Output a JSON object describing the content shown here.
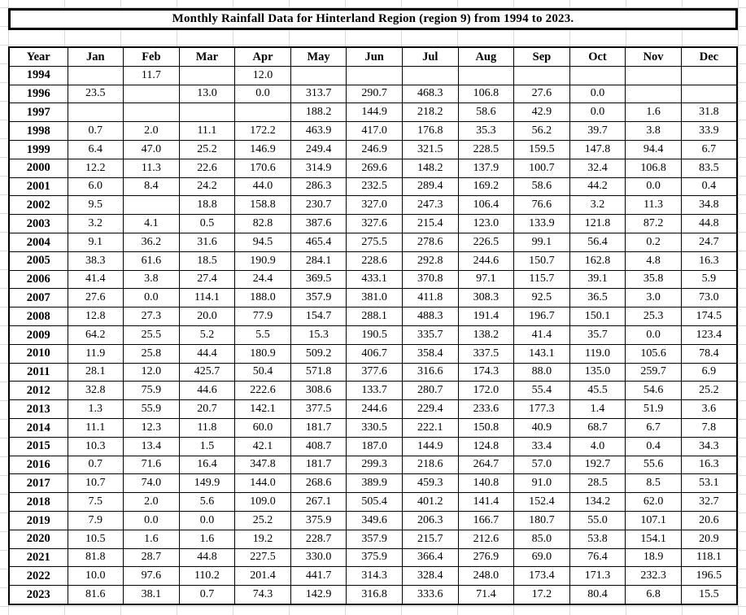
{
  "title": "Monthly Rainfall Data for Hinterland Region (region 9) from 1994 to 2023.",
  "colors": {
    "background": "#ffffff",
    "table_border": "#000000",
    "text": "#000000",
    "gridline": "#d9d9d9"
  },
  "table": {
    "columns": [
      "Year",
      "Jan",
      "Feb",
      "Mar",
      "Apr",
      "May",
      "Jun",
      "Jul",
      "Aug",
      "Sep",
      "Oct",
      "Nov",
      "Dec"
    ],
    "rows": [
      [
        "1994",
        "",
        "11.7",
        "",
        "12.0",
        "",
        "",
        "",
        "",
        "",
        "",
        "",
        ""
      ],
      [
        "1996",
        "23.5",
        "",
        "13.0",
        "0.0",
        "313.7",
        "290.7",
        "468.3",
        "106.8",
        "27.6",
        "0.0",
        "",
        ""
      ],
      [
        "1997",
        "",
        "",
        "",
        "",
        "188.2",
        "144.9",
        "218.2",
        "58.6",
        "42.9",
        "0.0",
        "1.6",
        "31.8"
      ],
      [
        "1998",
        "0.7",
        "2.0",
        "11.1",
        "172.2",
        "463.9",
        "417.0",
        "176.8",
        "35.3",
        "56.2",
        "39.7",
        "3.8",
        "33.9"
      ],
      [
        "1999",
        "6.4",
        "47.0",
        "25.2",
        "146.9",
        "249.4",
        "246.9",
        "321.5",
        "228.5",
        "159.5",
        "147.8",
        "94.4",
        "6.7"
      ],
      [
        "2000",
        "12.2",
        "11.3",
        "22.6",
        "170.6",
        "314.9",
        "269.6",
        "148.2",
        "137.9",
        "100.7",
        "32.4",
        "106.8",
        "83.5"
      ],
      [
        "2001",
        "6.0",
        "8.4",
        "24.2",
        "44.0",
        "286.3",
        "232.5",
        "289.4",
        "169.2",
        "58.6",
        "44.2",
        "0.0",
        "0.4"
      ],
      [
        "2002",
        "9.5",
        "",
        "18.8",
        "158.8",
        "230.7",
        "327.0",
        "247.3",
        "106.4",
        "76.6",
        "3.2",
        "11.3",
        "34.8"
      ],
      [
        "2003",
        "3.2",
        "4.1",
        "0.5",
        "82.8",
        "387.6",
        "327.6",
        "215.4",
        "123.0",
        "133.9",
        "121.8",
        "87.2",
        "44.8"
      ],
      [
        "2004",
        "9.1",
        "36.2",
        "31.6",
        "94.5",
        "465.4",
        "275.5",
        "278.6",
        "226.5",
        "99.1",
        "56.4",
        "0.2",
        "24.7"
      ],
      [
        "2005",
        "38.3",
        "61.6",
        "18.5",
        "190.9",
        "284.1",
        "228.6",
        "292.8",
        "244.6",
        "150.7",
        "162.8",
        "4.8",
        "16.3"
      ],
      [
        "2006",
        "41.4",
        "3.8",
        "27.4",
        "24.4",
        "369.5",
        "433.1",
        "370.8",
        "97.1",
        "115.7",
        "39.1",
        "35.8",
        "5.9"
      ],
      [
        "2007",
        "27.6",
        "0.0",
        "114.1",
        "188.0",
        "357.9",
        "381.0",
        "411.8",
        "308.3",
        "92.5",
        "36.5",
        "3.0",
        "73.0"
      ],
      [
        "2008",
        "12.8",
        "27.3",
        "20.0",
        "77.9",
        "154.7",
        "288.1",
        "488.3",
        "191.4",
        "196.7",
        "150.1",
        "25.3",
        "174.5"
      ],
      [
        "2009",
        "64.2",
        "25.5",
        "5.2",
        "5.5",
        "15.3",
        "190.5",
        "335.7",
        "138.2",
        "41.4",
        "35.7",
        "0.0",
        "123.4"
      ],
      [
        "2010",
        "11.9",
        "25.8",
        "44.4",
        "180.9",
        "509.2",
        "406.7",
        "358.4",
        "337.5",
        "143.1",
        "119.0",
        "105.6",
        "78.4"
      ],
      [
        "2011",
        "28.1",
        "12.0",
        "425.7",
        "50.4",
        "571.8",
        "377.6",
        "316.6",
        "174.3",
        "88.0",
        "135.0",
        "259.7",
        "6.9"
      ],
      [
        "2012",
        "32.8",
        "75.9",
        "44.6",
        "222.6",
        "308.6",
        "133.7",
        "280.7",
        "172.0",
        "55.4",
        "45.5",
        "54.6",
        "25.2"
      ],
      [
        "2013",
        "1.3",
        "55.9",
        "20.7",
        "142.1",
        "377.5",
        "244.6",
        "229.4",
        "233.6",
        "177.3",
        "1.4",
        "51.9",
        "3.6"
      ],
      [
        "2014",
        "11.1",
        "12.3",
        "11.8",
        "60.0",
        "181.7",
        "330.5",
        "222.1",
        "150.8",
        "40.9",
        "68.7",
        "6.7",
        "7.8"
      ],
      [
        "2015",
        "10.3",
        "13.4",
        "1.5",
        "42.1",
        "408.7",
        "187.0",
        "144.9",
        "124.8",
        "33.4",
        "4.0",
        "0.4",
        "34.3"
      ],
      [
        "2016",
        "0.7",
        "71.6",
        "16.4",
        "347.8",
        "181.7",
        "299.3",
        "218.6",
        "264.7",
        "57.0",
        "192.7",
        "55.6",
        "16.3"
      ],
      [
        "2017",
        "10.7",
        "74.0",
        "149.9",
        "144.0",
        "268.6",
        "389.9",
        "459.3",
        "140.8",
        "91.0",
        "28.5",
        "8.5",
        "53.1"
      ],
      [
        "2018",
        "7.5",
        "2.0",
        "5.6",
        "109.0",
        "267.1",
        "505.4",
        "401.2",
        "141.4",
        "152.4",
        "134.2",
        "62.0",
        "32.7"
      ],
      [
        "2019",
        "7.9",
        "0.0",
        "0.0",
        "25.2",
        "375.9",
        "349.6",
        "206.3",
        "166.7",
        "180.7",
        "55.0",
        "107.1",
        "20.6"
      ],
      [
        "2020",
        "10.5",
        "1.6",
        "1.6",
        "19.2",
        "228.7",
        "357.9",
        "215.7",
        "212.6",
        "85.0",
        "53.8",
        "154.1",
        "20.9"
      ],
      [
        "2021",
        "81.8",
        "28.7",
        "44.8",
        "227.5",
        "330.0",
        "375.9",
        "366.4",
        "276.9",
        "69.0",
        "76.4",
        "18.9",
        "118.1"
      ],
      [
        "2022",
        "10.0",
        "97.6",
        "110.2",
        "201.4",
        "441.7",
        "314.3",
        "328.4",
        "248.0",
        "173.4",
        "171.3",
        "232.3",
        "196.5"
      ],
      [
        "2023",
        "81.6",
        "38.1",
        "0.7",
        "74.3",
        "142.9",
        "316.8",
        "333.6",
        "71.4",
        "17.2",
        "80.4",
        "6.8",
        "15.5"
      ]
    ]
  }
}
